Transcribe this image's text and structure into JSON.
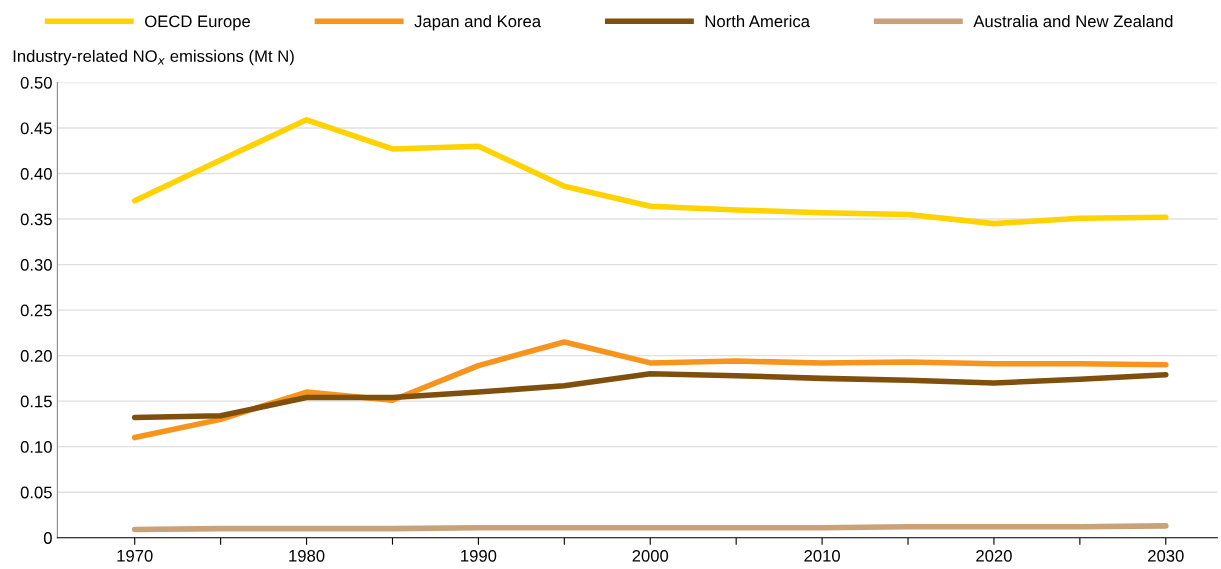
{
  "chart_data": {
    "type": "line",
    "ylabel": "Industry-related NO$_{x}$ emissions (Mt N)",
    "x": [
      1970,
      1975,
      1980,
      1985,
      1990,
      1995,
      2000,
      2005,
      2010,
      2015,
      2020,
      2025,
      2030
    ],
    "series": [
      {
        "name": "OECD Europe",
        "color": "#ffd200",
        "values": [
          0.37,
          0.415,
          0.459,
          0.427,
          0.43,
          0.386,
          0.364,
          0.36,
          0.357,
          0.355,
          0.345,
          0.351,
          0.352
        ]
      },
      {
        "name": "Japan and Korea",
        "color": "#f7941d",
        "values": [
          0.11,
          0.13,
          0.16,
          0.151,
          0.189,
          0.215,
          0.192,
          0.194,
          0.192,
          0.193,
          0.191,
          0.191,
          0.19
        ]
      },
      {
        "name": "North America",
        "color": "#7f4f0d",
        "values": [
          0.132,
          0.134,
          0.154,
          0.154,
          0.16,
          0.167,
          0.18,
          0.178,
          0.175,
          0.173,
          0.17,
          0.174,
          0.179
        ]
      },
      {
        "name": "Australia and New Zealand",
        "color": "#c9a27a",
        "values": [
          0.009,
          0.01,
          0.01,
          0.01,
          0.011,
          0.011,
          0.011,
          0.011,
          0.011,
          0.012,
          0.012,
          0.012,
          0.013
        ]
      }
    ],
    "xlim": [
      1965.5,
      2033
    ],
    "xticks": [
      1970,
      {
        "value": 1975,
        "label": null
      },
      1980,
      {
        "value": 1985,
        "label": null
      },
      1990,
      {
        "value": 1995,
        "label": null
      },
      2000,
      {
        "value": 2005,
        "label": null
      },
      2010,
      {
        "value": 2015,
        "label": null
      },
      2020,
      {
        "value": 2025,
        "label": null
      },
      2030
    ],
    "ylim": [
      0,
      0.5
    ],
    "yticks": [
      0,
      {
        "value": 0.05,
        "label": "0.05"
      },
      {
        "value": 0.1,
        "label": "0.10"
      },
      {
        "value": 0.15,
        "label": "0.15"
      },
      {
        "value": 0.2,
        "label": "0.20"
      },
      {
        "value": 0.25,
        "label": "0.25"
      },
      {
        "value": 0.3,
        "label": "0.30"
      },
      {
        "value": 0.35,
        "label": "0.35"
      },
      {
        "value": 0.4,
        "label": "0.40"
      },
      {
        "value": 0.45,
        "label": "0.45"
      },
      {
        "value": 0.5,
        "label": "0.50"
      }
    ],
    "grid": "y",
    "legend": "top",
    "marker": "none",
    "line_style": "solid"
  }
}
